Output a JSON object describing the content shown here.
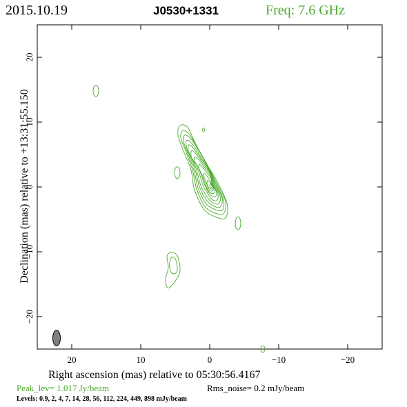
{
  "header": {
    "date": "2015.10.19",
    "source": "J0530+1331",
    "freq": "Freq: 7.6 GHz",
    "freq_color": "#4aaa2a"
  },
  "axes": {
    "xlabel": "Right ascension (mas) relative to 05:30:56.4167",
    "ylabel": "Declination (mas) relative to +13:31:55.150",
    "xlim": [
      25,
      -25
    ],
    "ylim": [
      -25,
      25
    ],
    "x_ticks": [
      20,
      10,
      0,
      -10,
      -20
    ],
    "y_ticks": [
      20,
      10,
      0,
      -10,
      -20
    ],
    "x_tick_labels": [
      "20",
      "10",
      "0",
      "−10",
      "−20"
    ],
    "y_tick_labels": [
      "20",
      "10",
      "0",
      "−10",
      "−20"
    ]
  },
  "footer": {
    "peak": "Peak_lev=  1.017 Jy/beam",
    "rms": "Rms_noise=  0.2 mJy/beam",
    "levels": "Levels: 0.9,   2,   4,   7,  14,  28,  56, 112, 224, 449, 898 mJy/beam"
  },
  "chart_data": {
    "type": "contour",
    "contour_color": "#4aaa2a",
    "levels_mJy_per_beam": [
      0.9,
      2,
      4,
      7,
      14,
      28,
      56,
      112,
      224,
      449,
      898
    ],
    "peak_Jy_per_beam": 1.017,
    "rms_mJy_per_beam": 0.2,
    "beam": {
      "x": 22.2,
      "y": -23.3,
      "major_mas": 2.4,
      "minor_mas": 1.1,
      "pa_deg": 0,
      "color": "#808080"
    },
    "main_component": {
      "contours": [
        [
          [
            4.3,
            9.5
          ],
          [
            3.2,
            9.2
          ],
          [
            2.2,
            7.0
          ],
          [
            0.6,
            3.8
          ],
          [
            -1.0,
            1.0
          ],
          [
            -2.5,
            -2.5
          ],
          [
            -2.3,
            -4.8
          ],
          [
            -0.8,
            -4.6
          ],
          [
            0.8,
            -3.5
          ],
          [
            2.2,
            -0.5
          ],
          [
            2.7,
            2.6
          ],
          [
            3.9,
            5.8
          ],
          [
            4.6,
            8.1
          ]
        ],
        [
          [
            3.9,
            8.7
          ],
          [
            3.0,
            8.2
          ],
          [
            1.9,
            6.3
          ],
          [
            0.4,
            3.5
          ],
          [
            -0.9,
            0.8
          ],
          [
            -2.3,
            -2.2
          ],
          [
            -2.0,
            -4.1
          ],
          [
            -0.7,
            -4.0
          ],
          [
            0.7,
            -3.0
          ],
          [
            1.9,
            -0.3
          ],
          [
            2.5,
            2.6
          ],
          [
            3.5,
            5.6
          ],
          [
            4.2,
            7.6
          ]
        ],
        [
          [
            3.6,
            8.0
          ],
          [
            2.7,
            7.4
          ],
          [
            1.6,
            5.6
          ],
          [
            0.3,
            3.2
          ],
          [
            -0.8,
            0.7
          ],
          [
            -2.0,
            -2.0
          ],
          [
            -1.8,
            -3.6
          ],
          [
            -0.6,
            -3.4
          ],
          [
            0.6,
            -2.5
          ],
          [
            1.7,
            -0.1
          ],
          [
            2.3,
            2.6
          ],
          [
            3.2,
            5.2
          ],
          [
            3.8,
            7.0
          ]
        ],
        [
          [
            3.3,
            7.2
          ],
          [
            2.5,
            6.6
          ],
          [
            1.5,
            5.0
          ],
          [
            0.2,
            2.9
          ],
          [
            -0.7,
            0.6
          ],
          [
            -1.8,
            -1.7
          ],
          [
            -1.5,
            -3.1
          ],
          [
            -0.5,
            -2.9
          ],
          [
            0.5,
            -2.0
          ],
          [
            1.5,
            0.1
          ],
          [
            2.1,
            2.6
          ],
          [
            2.9,
            4.8
          ],
          [
            3.4,
            6.3
          ]
        ],
        [
          [
            3.0,
            6.5
          ],
          [
            2.3,
            5.9
          ],
          [
            1.3,
            4.4
          ],
          [
            0.1,
            2.6
          ],
          [
            -0.6,
            0.5
          ],
          [
            -1.5,
            -1.4
          ],
          [
            -1.3,
            -2.6
          ],
          [
            -0.4,
            -2.4
          ],
          [
            0.4,
            -1.5
          ],
          [
            1.3,
            0.2
          ],
          [
            1.9,
            2.6
          ],
          [
            2.6,
            4.4
          ],
          [
            3.1,
            5.6
          ]
        ],
        [
          [
            2.6,
            5.6
          ],
          [
            2.0,
            5.1
          ],
          [
            1.1,
            3.8
          ],
          [
            0.0,
            2.2
          ],
          [
            -0.5,
            0.4
          ],
          [
            -1.2,
            -1.1
          ],
          [
            -1.0,
            -2.1
          ],
          [
            -0.3,
            -1.9
          ],
          [
            0.3,
            -1.0
          ],
          [
            1.0,
            0.3
          ],
          [
            1.6,
            2.4
          ],
          [
            2.3,
            3.9
          ],
          [
            2.7,
            4.8
          ]
        ],
        [
          [
            2.1,
            4.6
          ],
          [
            1.6,
            4.2
          ],
          [
            0.8,
            3.1
          ],
          [
            -0.1,
            1.8
          ],
          [
            -0.4,
            0.3
          ],
          [
            -1.0,
            -0.8
          ],
          [
            -0.8,
            -1.5
          ],
          [
            -0.2,
            -1.3
          ],
          [
            0.3,
            -0.6
          ],
          [
            0.8,
            0.5
          ],
          [
            1.3,
            2.1
          ],
          [
            1.8,
            3.3
          ],
          [
            2.2,
            4.0
          ]
        ],
        [
          [
            1.5,
            3.5
          ],
          [
            1.1,
            3.1
          ],
          [
            0.5,
            2.3
          ],
          [
            -0.2,
            1.3
          ],
          [
            -0.5,
            0.2
          ],
          [
            -0.8,
            -0.5
          ],
          [
            -0.5,
            -1.0
          ],
          [
            0.0,
            -0.8
          ],
          [
            0.4,
            -0.2
          ],
          [
            0.7,
            0.6
          ],
          [
            1.0,
            1.6
          ],
          [
            1.4,
            2.5
          ],
          [
            1.6,
            3.0
          ]
        ],
        [
          [
            0.8,
            2.1
          ],
          [
            0.4,
            1.7
          ],
          [
            0.0,
            1.1
          ],
          [
            -0.4,
            0.4
          ],
          [
            -0.6,
            -0.2
          ],
          [
            -0.4,
            -0.6
          ],
          [
            0.0,
            -0.5
          ],
          [
            0.3,
            0.0
          ],
          [
            0.5,
            0.7
          ],
          [
            0.8,
            1.4
          ]
        ],
        [
          [
            0.3,
            1.0
          ],
          [
            -0.1,
            0.7
          ],
          [
            -0.4,
            0.2
          ],
          [
            -0.5,
            -0.2
          ],
          [
            -0.2,
            -0.3
          ],
          [
            0.2,
            0.0
          ],
          [
            0.4,
            0.5
          ]
        ],
        [
          [
            -0.1,
            0.5
          ],
          [
            -0.3,
            0.2
          ],
          [
            -0.3,
            -0.1
          ],
          [
            -0.1,
            0.0
          ],
          [
            0.0,
            0.3
          ]
        ]
      ]
    },
    "minor_components": [
      {
        "x": 16.5,
        "y": 14.8,
        "rx": 0.4,
        "ry": 0.9
      },
      {
        "x": 0.9,
        "y": 8.8,
        "rx": 0.15,
        "ry": 0.3
      },
      {
        "x": 4.7,
        "y": 2.2,
        "rx": 0.4,
        "ry": 0.9
      },
      {
        "x": -4.1,
        "y": -5.6,
        "rx": 0.4,
        "ry": 1.0
      },
      {
        "x": -7.7,
        "y": -25.0,
        "rx": 0.3,
        "ry": 0.5
      }
    ],
    "southern_component": {
      "contours": [
        [
          [
            5.7,
            -10.1
          ],
          [
            4.7,
            -10.6
          ],
          [
            4.3,
            -12.8
          ],
          [
            4.8,
            -14.2
          ],
          [
            6.0,
            -15.6
          ],
          [
            6.4,
            -14.3
          ],
          [
            6.0,
            -12.4
          ],
          [
            6.2,
            -10.8
          ]
        ],
        [
          [
            5.4,
            -10.8
          ],
          [
            4.9,
            -11.3
          ],
          [
            4.7,
            -12.8
          ],
          [
            5.1,
            -13.4
          ],
          [
            5.7,
            -13.0
          ],
          [
            5.8,
            -11.5
          ]
        ]
      ]
    }
  }
}
